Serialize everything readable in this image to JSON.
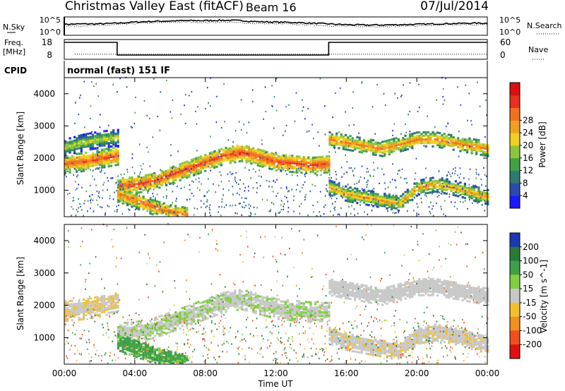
{
  "header": {
    "station": "Christmas Valley East (fitACF)",
    "beam": "Beam 16",
    "date": "07/Jul/2014"
  },
  "chart_data": [
    {
      "type": "line",
      "panel": "noise",
      "left_label": "N.Sky",
      "right_label": "N.Search",
      "left_ticks": [
        "10^5",
        "10^0"
      ],
      "right_ticks": [
        "10^5",
        "10^0"
      ],
      "x_hours": [
        0,
        1,
        2,
        3,
        4,
        5,
        6,
        7,
        8,
        9,
        10,
        11,
        12,
        13,
        14,
        15,
        16,
        17,
        18,
        19,
        20,
        21,
        22,
        23,
        24
      ],
      "series": [
        {
          "values": [
            3.0,
            3.1,
            3.1,
            3.3,
            3.6,
            3.8,
            3.9,
            4.0,
            4.0,
            4.1,
            4.0,
            3.7,
            3.6,
            3.5,
            3.3,
            3.1,
            2.9,
            2.8,
            2.8,
            2.9,
            3.0,
            3.1,
            3.2,
            3.3,
            3.3
          ]
        },
        {
          "values": [
            2.5,
            2.6,
            2.7,
            2.9,
            3.2,
            3.4,
            3.5,
            3.6,
            3.5,
            3.6,
            3.4,
            3.2,
            3.1,
            3.0,
            2.8,
            2.6,
            2.5,
            2.4,
            2.4,
            2.5,
            2.6,
            2.7,
            2.8,
            2.9,
            2.9
          ]
        }
      ]
    },
    {
      "type": "line",
      "panel": "frequency",
      "left_label": "Freq.",
      "left_unit": "[MHz]",
      "right_label": "Nave",
      "left_ticks": [
        "18",
        "8"
      ],
      "right_ticks": [
        "60",
        "0"
      ],
      "freq_steps": [
        [
          0,
          18
        ],
        [
          3.0,
          18
        ],
        [
          3.0,
          9
        ],
        [
          15.0,
          9
        ],
        [
          15.0,
          18
        ],
        [
          24,
          18
        ]
      ],
      "nave_level": 1.3
    },
    {
      "type": "table",
      "panel": "cpid",
      "label": "CPID",
      "value": "normal (fast) 151 IF"
    },
    {
      "type": "heatmap",
      "panel": "power",
      "ylabel": "Slant Range [km]",
      "yticks": [
        "1000",
        "2000",
        "3000",
        "4000"
      ],
      "ylim": [
        180,
        4500
      ],
      "colorbar_label": "Power [dB]",
      "colorbar_ticks": [
        "4",
        "8",
        "12",
        "16",
        "20",
        "24",
        "28"
      ],
      "colorbar_colors": [
        "#1a1aff",
        "#2a4ab0",
        "#2f7a70",
        "#43a047",
        "#8cc63f",
        "#f0d020",
        "#f0a020",
        "#f07020",
        "#e83020",
        "#d81010"
      ],
      "bands": [
        {
          "x": [
            0,
            1,
            2,
            3
          ],
          "y": [
            1800,
            1850,
            1950,
            2050
          ],
          "width": 180,
          "power": 26
        },
        {
          "x": [
            0,
            1,
            2,
            3
          ],
          "y": [
            2300,
            2450,
            2550,
            2600
          ],
          "width": 160,
          "power": 18
        },
        {
          "x": [
            3,
            4,
            5,
            6,
            7,
            8,
            9,
            10,
            11,
            12,
            13,
            14,
            15
          ],
          "y": [
            1100,
            1150,
            1250,
            1450,
            1650,
            1850,
            2050,
            2150,
            2000,
            1850,
            1800,
            1750,
            1800
          ],
          "width": 170,
          "power": 27
        },
        {
          "x": [
            3,
            4,
            5,
            6,
            7
          ],
          "y": [
            850,
            650,
            450,
            300,
            200
          ],
          "width": 150,
          "power": 25
        },
        {
          "x": [
            15,
            16,
            17,
            18,
            19,
            20,
            21,
            22,
            23,
            24
          ],
          "y": [
            2550,
            2450,
            2350,
            2250,
            2400,
            2550,
            2550,
            2450,
            2350,
            2250
          ],
          "width": 140,
          "power": 24
        },
        {
          "x": [
            15,
            16,
            17,
            18,
            19,
            20,
            21,
            22,
            23,
            24
          ],
          "y": [
            1050,
            850,
            750,
            650,
            550,
            1050,
            1150,
            1050,
            900,
            750
          ],
          "width": 140,
          "power": 22
        }
      ]
    },
    {
      "type": "heatmap",
      "panel": "velocity",
      "ylabel": "Slant Range [km]",
      "yticks": [
        "1000",
        "2000",
        "3000",
        "4000"
      ],
      "ylim": [
        180,
        4500
      ],
      "xlabel": "Time UT",
      "xticks": [
        "00:00",
        "04:00",
        "08:00",
        "12:00",
        "16:00",
        "20:00",
        "00:00"
      ],
      "colorbar_label": "Velocity [m s^-1]",
      "colorbar_ticks": [
        "200",
        "100",
        "50",
        "15",
        "-15",
        "-50",
        "-100",
        "-200"
      ],
      "colorbar_colors": [
        "#1a3ab0",
        "#2a7a3a",
        "#3fa04a",
        "#80d040",
        "#c8c8c8",
        "#f0c030",
        "#f09020",
        "#f05020",
        "#e01010"
      ],
      "bands": [
        {
          "x": [
            0,
            1,
            2,
            3
          ],
          "y": [
            1800,
            1850,
            1950,
            2050
          ],
          "width": 200,
          "velocity": -10
        },
        {
          "x": [
            3,
            4,
            5,
            6,
            7,
            8,
            9,
            10,
            11,
            12,
            13,
            14,
            15
          ],
          "y": [
            1100,
            1150,
            1250,
            1450,
            1650,
            1850,
            2050,
            2150,
            2000,
            1850,
            1800,
            1750,
            1800
          ],
          "width": 190,
          "velocity": 10
        },
        {
          "x": [
            3,
            4,
            5,
            6,
            7
          ],
          "y": [
            850,
            650,
            450,
            300,
            200
          ],
          "width": 170,
          "velocity": 60
        },
        {
          "x": [
            15,
            16,
            17,
            18,
            19,
            20,
            21,
            22,
            23,
            24
          ],
          "y": [
            2550,
            2450,
            2350,
            2250,
            2400,
            2550,
            2550,
            2450,
            2350,
            2250
          ],
          "width": 170,
          "velocity": 0
        },
        {
          "x": [
            15,
            16,
            17,
            18,
            19,
            20,
            21,
            22,
            23,
            24
          ],
          "y": [
            1050,
            850,
            750,
            650,
            550,
            1050,
            1150,
            1050,
            900,
            750
          ],
          "width": 170,
          "velocity": -5
        }
      ]
    }
  ]
}
